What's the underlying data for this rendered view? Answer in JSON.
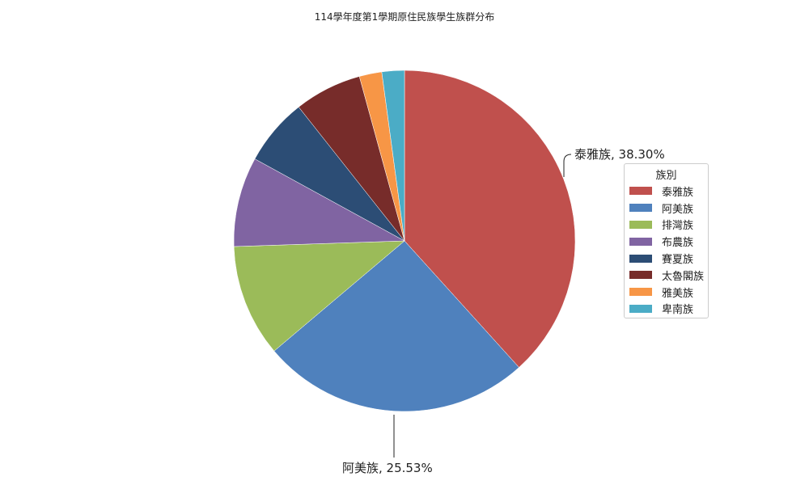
{
  "chart_data": {
    "type": "pie",
    "title": "114學年度第1學期原住民族學生族群分布",
    "legend_title": "族別",
    "legend_position": "right",
    "start_angle": "top, clockwise",
    "categories": [
      "泰雅族",
      "阿美族",
      "排灣族",
      "布農族",
      "賽夏族",
      "太魯閣族",
      "雅美族",
      "卑南族"
    ],
    "values": [
      38.3,
      25.53,
      10.64,
      8.51,
      6.38,
      6.38,
      2.13,
      2.13
    ],
    "colors": [
      "#c0504d",
      "#4f81bd",
      "#9bbb59",
      "#8064a2",
      "#2c4d75",
      "#772c2a",
      "#f79646",
      "#4bacc6"
    ],
    "data_labels": [
      {
        "category": "泰雅族",
        "text": "泰雅族, 38.30%"
      },
      {
        "category": "阿美族",
        "text": "阿美族, 25.53%"
      }
    ]
  }
}
